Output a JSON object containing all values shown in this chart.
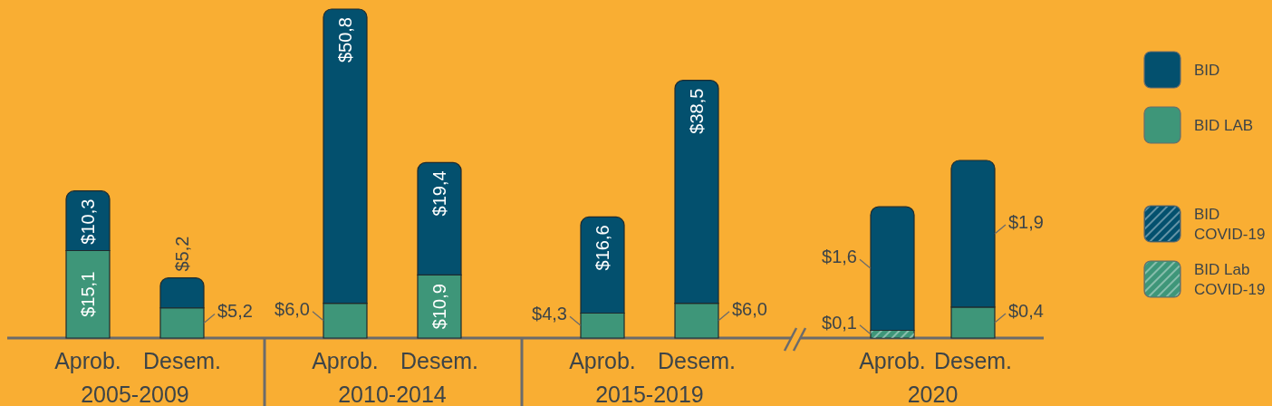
{
  "chart_data": [
    {
      "type": "bar",
      "stacked": true,
      "categories": [
        "Aprob.",
        "Desem.",
        "Aprob.",
        "Desem.",
        "Aprob.",
        "Desem."
      ],
      "series": [
        {
          "color": "#3e9679",
          "values": [
            15.1,
            5.2,
            6.0,
            10.9,
            4.3,
            6.0
          ],
          "value_labels": [
            "$15,1",
            "$5,2",
            "$6,0",
            "$10,9",
            "$4,3",
            "$6,0"
          ]
        },
        {
          "color": "#03506e",
          "values": [
            10.3,
            5.2,
            50.8,
            19.4,
            16.6,
            38.5
          ],
          "value_labels": [
            "$10,3",
            "$5,2",
            "$50,8",
            "$19,4",
            "$16,6",
            "$38,5"
          ]
        }
      ],
      "annotations": [
        "2005-2009",
        "2010-2014",
        "2015-2019"
      ]
    },
    {
      "type": "bar",
      "stacked": true,
      "categories": [
        "Aprob.",
        "Desem."
      ],
      "series": [
        {
          "name": "BID Lab COVID-19",
          "color": "#3e9679",
          "values": [
            0.1,
            null
          ],
          "value_labels": [
            "$0,1",
            null
          ]
        },
        {
          "name": "BID COVID-19",
          "color": "#03506e",
          "values": [
            null,
            null
          ],
          "value_labels": [
            null,
            null
          ]
        },
        {
          "name": "BID LAB",
          "color": "#3e9679",
          "values": [
            null,
            0.4
          ],
          "value_labels": [
            null,
            "$0,4"
          ]
        },
        {
          "name": "BID",
          "color": "#03506e",
          "values": [
            1.6,
            1.9
          ],
          "value_labels": [
            "$1,6",
            "$1,9"
          ]
        }
      ],
      "annotations": [
        "2020"
      ],
      "legend": "right"
    }
  ]
}
